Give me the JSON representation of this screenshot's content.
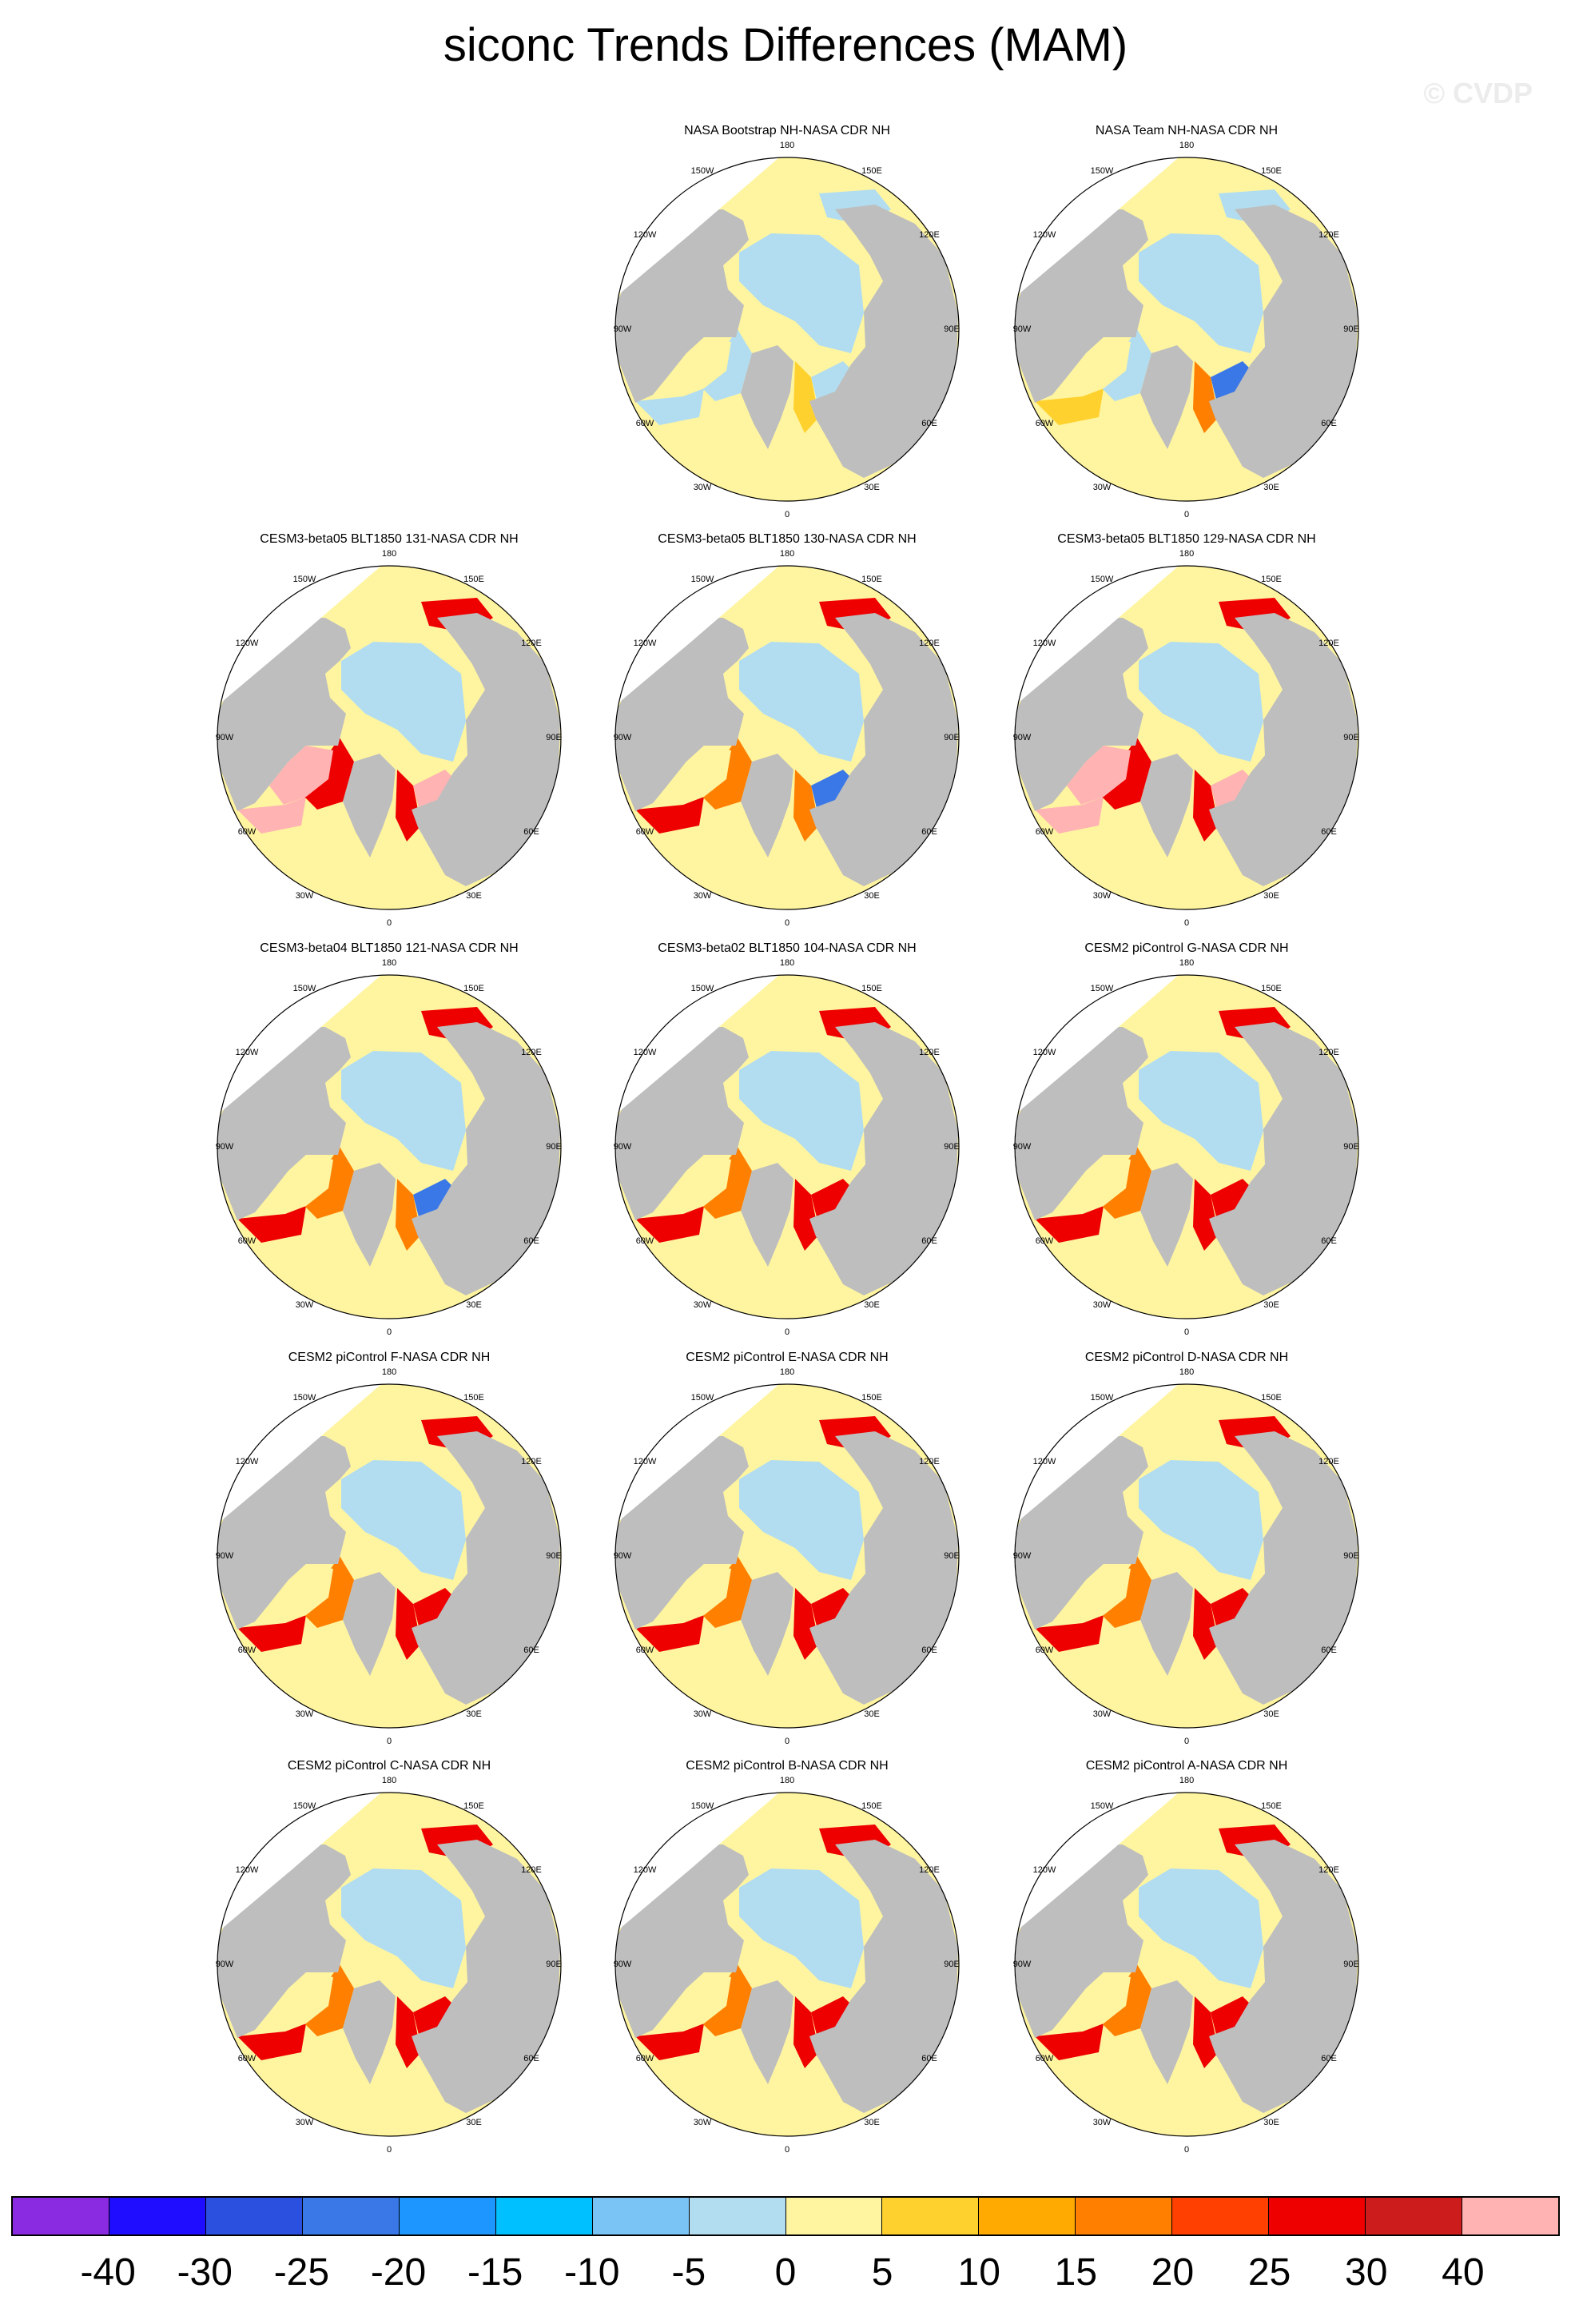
{
  "title": "siconc Trends Differences (MAM)",
  "watermark": "© CVDP",
  "lon_labels": [
    "180",
    "150E",
    "120E",
    "90E",
    "60E",
    "30E",
    "0",
    "30W",
    "60W",
    "90W",
    "120W",
    "150W"
  ],
  "panels": [
    {
      "title": "NASA Bootstrap NH-NASA CDR NH",
      "row": 0,
      "col": 1,
      "pattern": "obs"
    },
    {
      "title": "NASA Team NH-NASA CDR NH",
      "row": 0,
      "col": 2,
      "pattern": "obs2"
    },
    {
      "title": "CESM3-beta05 BLT1850 131-NASA CDR NH",
      "row": 1,
      "col": 0,
      "pattern": "strong"
    },
    {
      "title": "CESM3-beta05 BLT1850 130-NASA CDR NH",
      "row": 1,
      "col": 1,
      "pattern": "mixed"
    },
    {
      "title": "CESM3-beta05 BLT1850 129-NASA CDR NH",
      "row": 1,
      "col": 2,
      "pattern": "strong"
    },
    {
      "title": "CESM3-beta04 BLT1850 121-NASA CDR NH",
      "row": 2,
      "col": 0,
      "pattern": "mixed"
    },
    {
      "title": "CESM3-beta02 BLT1850 104-NASA CDR NH",
      "row": 2,
      "col": 1,
      "pattern": "model"
    },
    {
      "title": "CESM2 piControl G-NASA CDR NH",
      "row": 2,
      "col": 2,
      "pattern": "model"
    },
    {
      "title": "CESM2 piControl F-NASA CDR NH",
      "row": 3,
      "col": 0,
      "pattern": "model"
    },
    {
      "title": "CESM2 piControl E-NASA CDR NH",
      "row": 3,
      "col": 1,
      "pattern": "model"
    },
    {
      "title": "CESM2 piControl D-NASA CDR NH",
      "row": 3,
      "col": 2,
      "pattern": "model"
    },
    {
      "title": "CESM2 piControl C-NASA CDR NH",
      "row": 4,
      "col": 0,
      "pattern": "model"
    },
    {
      "title": "CESM2 piControl B-NASA CDR NH",
      "row": 4,
      "col": 1,
      "pattern": "model"
    },
    {
      "title": "CESM2 piControl A-NASA CDR NH",
      "row": 4,
      "col": 2,
      "pattern": "model"
    }
  ],
  "colorbar": {
    "colors": [
      "#8a2be2",
      "#1e0dff",
      "#2b50e0",
      "#3a78e8",
      "#1e96ff",
      "#00c0ff",
      "#7ac4f5",
      "#b2ddf0",
      "#fff5a0",
      "#ffd12e",
      "#ffaa00",
      "#ff7f00",
      "#ff4000",
      "#ee0000",
      "#cd1c1c",
      "#ffb3b3"
    ],
    "labels": [
      "-40",
      "-30",
      "-25",
      "-20",
      "-15",
      "-10",
      "-5",
      "0",
      "5",
      "10",
      "15",
      "20",
      "25",
      "30",
      "40"
    ]
  },
  "colors": {
    "land": "#bebebe",
    "ocean": "#fff5a0",
    "ice_neg": "#b2ddf0",
    "deep_neg": "#3a78e8",
    "red": "#ee0000",
    "orange": "#ff7f00",
    "pink": "#ffb3b3",
    "gold": "#ffd12e"
  }
}
